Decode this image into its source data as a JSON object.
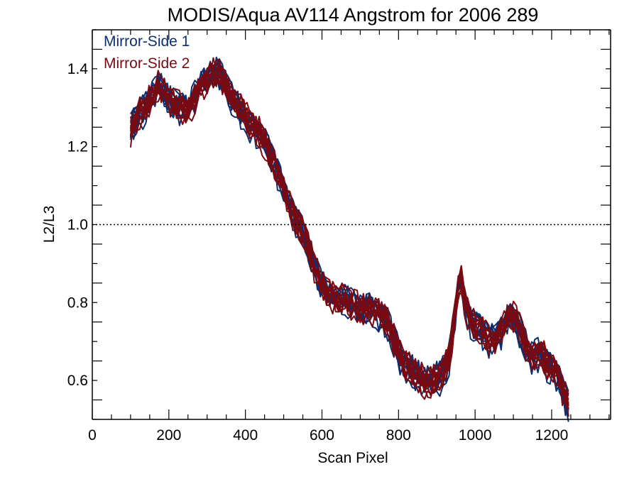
{
  "chart_data": {
    "type": "line",
    "title": "MODIS/Aqua AV114 Angstrom for 2006 289",
    "xlabel": "Scan Pixel",
    "ylabel": "L2/L3",
    "xlim": [
      0,
      1354
    ],
    "ylim": [
      0.5,
      1.5
    ],
    "x_ticks": [
      0,
      200,
      400,
      600,
      800,
      1000,
      1200
    ],
    "x_tick_labels": [
      "0",
      "200",
      "400",
      "600",
      "800",
      "1000",
      "1200"
    ],
    "y_ticks": [
      0.6,
      0.8,
      1.0,
      1.2,
      1.4
    ],
    "y_tick_labels": [
      "0.6",
      "0.8",
      "1.0",
      "1.2",
      "1.4"
    ],
    "reference_line": {
      "y": 1.0,
      "style": "dotted"
    },
    "legend_position": "top-left",
    "colors": {
      "mirror_side_1": "#0b2e6e",
      "mirror_side_2": "#7a0a12"
    },
    "base_profile": {
      "x": [
        100,
        120,
        140,
        160,
        175,
        190,
        210,
        230,
        250,
        270,
        290,
        310,
        330,
        350,
        370,
        390,
        410,
        430,
        450,
        470,
        490,
        510,
        530,
        550,
        570,
        590,
        610,
        630,
        650,
        670,
        690,
        710,
        730,
        750,
        770,
        790,
        810,
        830,
        850,
        870,
        890,
        910,
        930,
        945,
        960,
        975,
        990,
        1010,
        1030,
        1050,
        1070,
        1090,
        1110,
        1130,
        1150,
        1170,
        1190,
        1210,
        1230,
        1250
      ],
      "y": [
        1.24,
        1.28,
        1.3,
        1.33,
        1.36,
        1.33,
        1.31,
        1.3,
        1.29,
        1.33,
        1.36,
        1.38,
        1.39,
        1.35,
        1.31,
        1.29,
        1.26,
        1.24,
        1.21,
        1.17,
        1.12,
        1.06,
        1.01,
        0.98,
        0.92,
        0.86,
        0.83,
        0.81,
        0.81,
        0.8,
        0.79,
        0.78,
        0.78,
        0.77,
        0.75,
        0.7,
        0.64,
        0.63,
        0.61,
        0.59,
        0.6,
        0.61,
        0.65,
        0.74,
        0.88,
        0.78,
        0.75,
        0.73,
        0.71,
        0.7,
        0.73,
        0.77,
        0.75,
        0.69,
        0.66,
        0.67,
        0.64,
        0.62,
        0.57,
        0.53
      ]
    },
    "series": [
      {
        "name": "Mirror-Side 1",
        "count": 10
      },
      {
        "name": "Mirror-Side 2",
        "count": 10
      }
    ]
  }
}
